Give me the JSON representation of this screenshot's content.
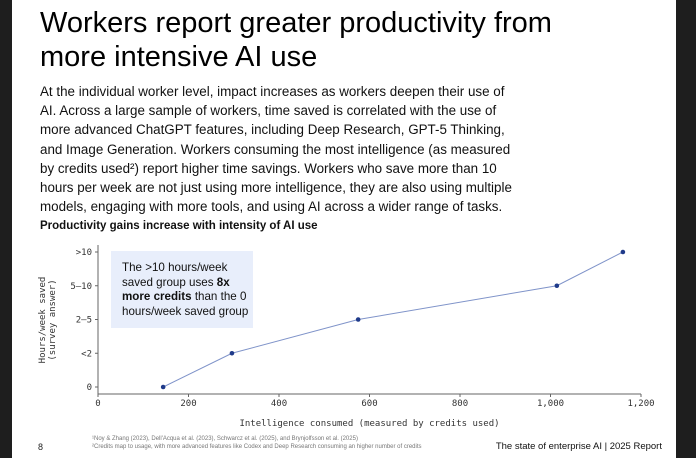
{
  "title": "Workers report greater productivity from more intensive AI use",
  "paragraph": "At the individual worker level, impact increases as workers deepen their use of AI. Across a large sample of workers, time saved is correlated with the use of more advanced ChatGPT features, including Deep Research, GPT-5 Thinking, and Image Generation. Workers consuming the most intelligence (as measured by credits used²) report higher time savings. Workers who save more than 10 hours per week are not just using more intelligence, they are also using multiple models, engaging with more tools, and using AI across a wider range of tasks.",
  "chart_data": {
    "type": "line",
    "title": "Productivity gains increase with intensity of AI use",
    "xlabel": "Intelligence consumed (measured by credits used)",
    "ylabel": "Hours/week saved",
    "ylabel2": "(survey answer)",
    "xlim": [
      0,
      1200
    ],
    "xticks": [
      "0",
      "200",
      "400",
      "600",
      "800",
      "1,000",
      "1,200"
    ],
    "xtick_values": [
      0,
      200,
      400,
      600,
      800,
      1000,
      1200
    ],
    "yticks": [
      "0",
      "<2",
      "2–5",
      "5–10",
      ">10"
    ],
    "x": [
      144,
      296,
      575,
      1014,
      1160
    ],
    "y": [
      "0",
      "<2",
      "2–5",
      "5–10",
      ">10"
    ],
    "color": "#1f3a8a",
    "line_color": "#7f93c9",
    "grid": false,
    "annotation": {
      "pre": "The >10 hours/week saved group uses ",
      "bold": "8x more credits",
      "post": " than the 0 hours/week saved group"
    }
  },
  "footnotes": [
    "¹Noy & Zhang (2023), Dell'Acqua et al. (2023), Schwarcz et al. (2025), and Brynjolfsson et al. (2025)",
    "²Credits map to usage, with more advanced features like Codex and Deep Research consuming an higher number of credits"
  ],
  "page_number": "8",
  "brand": "The state of enterprise AI  |  2025 Report"
}
